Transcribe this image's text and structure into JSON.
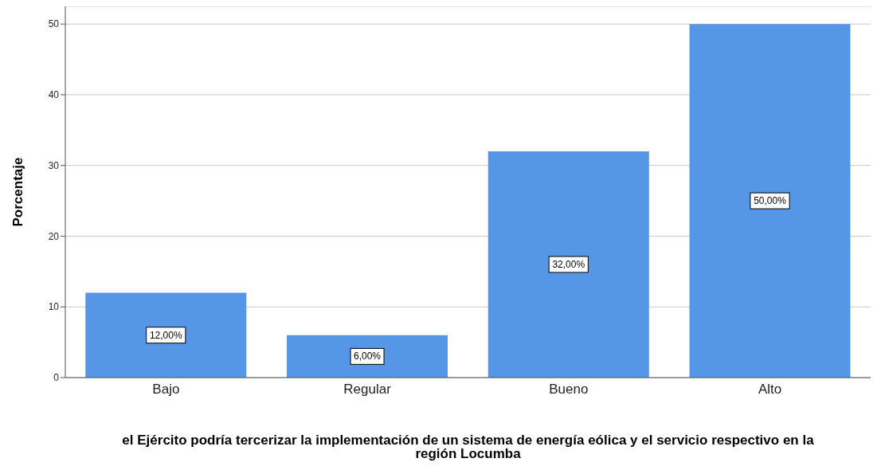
{
  "chart_data": {
    "type": "bar",
    "xlabel": "el Ejército podría tercerizar la implementación de un sistema de energía eólica y el servicio respectivo en la región Locumba",
    "ylabel": "Porcentaje",
    "categories": [
      "Bajo",
      "Regular",
      "Bueno",
      "Alto"
    ],
    "values": [
      12,
      6,
      32,
      50
    ],
    "value_labels": [
      "12,00%",
      "6,00%",
      "32,00%",
      "50,00%"
    ],
    "color": "#5596e6",
    "ylim": [
      0,
      52.5
    ],
    "yticks": [
      0,
      10,
      20,
      30,
      40,
      50
    ],
    "grid": "y"
  }
}
